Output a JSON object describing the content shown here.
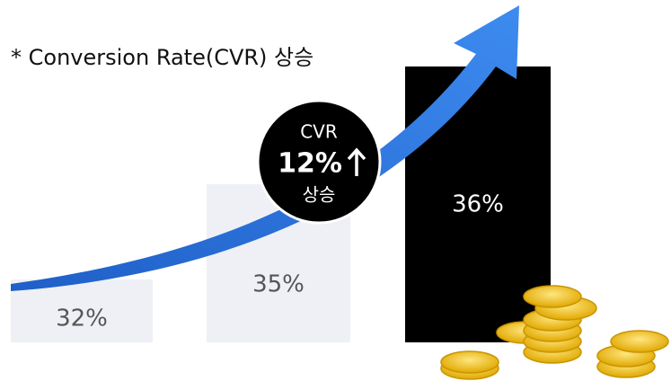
{
  "title": "* Conversion Rate(CVR) 상승",
  "bars": [
    {
      "label": "32%"
    },
    {
      "label": "35%"
    },
    {
      "label": "36%"
    }
  ],
  "badge": {
    "line1": "CVR",
    "line2": "12%",
    "line3": "상승"
  }
}
